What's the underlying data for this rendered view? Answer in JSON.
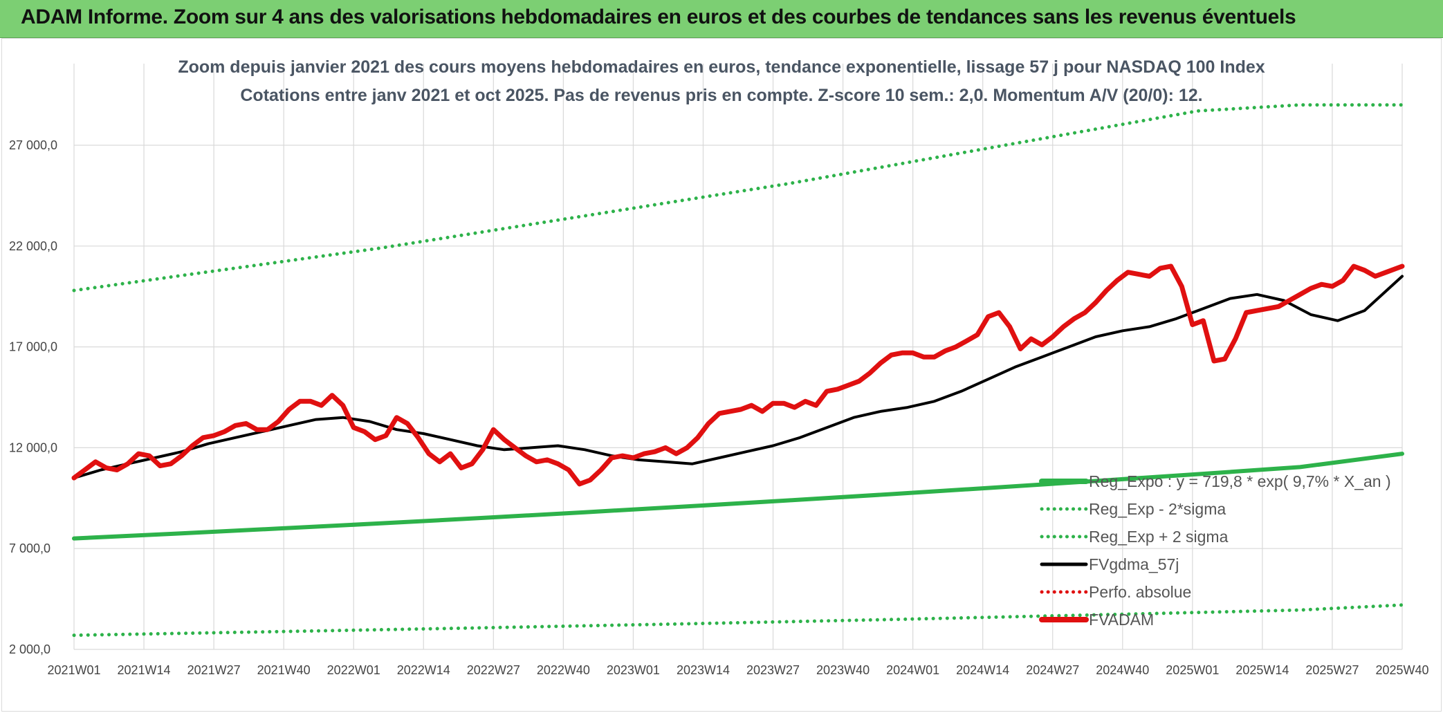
{
  "header": {
    "title": "ADAM Informe. Zoom sur 4 ans des valorisations hebdomadaires en euros et des courbes de tendances sans les revenus éventuels"
  },
  "colors": {
    "banner": "#7ccf73",
    "grid": "#d9d9d9",
    "fvadam": "#e01010",
    "fvgdma": "#000000",
    "reg_exp": "#2db24a",
    "perfo": "#e01010"
  },
  "chart_data": {
    "type": "line",
    "title": "Zoom depuis janvier 2021 des cours moyens hebdomadaires en euros, tendance exponentielle, lissage 57 j pour NASDAQ 100 Index",
    "subtitle": "Cotations entre janv 2021 et oct 2025. Pas de revenus pris en compte. Z-score 10 sem.: 2,0. Momentum A/V (20/0): 12.",
    "xlabel": "",
    "ylabel": "",
    "ylim": [
      2000,
      29000
    ],
    "y_ticks": [
      "2 000,0",
      "7 000,0",
      "12 000,0",
      "17 000,0",
      "22 000,0",
      "27 000,0"
    ],
    "y_tick_values": [
      2000,
      7000,
      12000,
      17000,
      22000,
      27000
    ],
    "x_ticks": [
      "2021W01",
      "2021W14",
      "2021W27",
      "2021W40",
      "2022W01",
      "2022W14",
      "2022W27",
      "2022W40",
      "2023W01",
      "2023W14",
      "2023W27",
      "2023W40",
      "2024W01",
      "2024W14",
      "2024W27",
      "2024W40",
      "2025W01",
      "2025W14",
      "2025W27",
      "2025W40"
    ],
    "grid": true,
    "legend_placement": "right",
    "legend": [
      {
        "label": "Reg_Expo : y = 719,8 * exp( 9,7% *  X_an )",
        "style": "solid-thick",
        "color": "#2db24a"
      },
      {
        "label": "Reg_Exp - 2*sigma",
        "style": "dotted",
        "color": "#2db24a"
      },
      {
        "label": "Reg_Exp + 2 sigma",
        "style": "dotted",
        "color": "#2db24a"
      },
      {
        "label": "FVgdma_57j",
        "style": "solid",
        "color": "#000000"
      },
      {
        "label": "Perfo. absolue",
        "style": "dotted",
        "color": "#e01010"
      },
      {
        "label": "FVADAM",
        "style": "solid-thick",
        "color": "#e01010"
      }
    ],
    "series": [
      {
        "name": "Reg_Expo : y = 719,8 * exp( 9,7% *  X_an )",
        "x": [
          0,
          19,
          38,
          57,
          76,
          95,
          114,
          133,
          152,
          171,
          190,
          209,
          228,
          247
        ],
        "values": [
          7500,
          7740,
          7990,
          8250,
          8520,
          8800,
          9090,
          9390,
          9700,
          10020,
          10350,
          10690,
          11040,
          11700
        ]
      },
      {
        "name": "Reg_Exp - 2*sigma",
        "x": [
          0,
          38,
          76,
          114,
          152,
          190,
          228,
          247
        ],
        "values": [
          2700,
          2880,
          3070,
          3270,
          3480,
          3710,
          3950,
          4200
        ]
      },
      {
        "name": "Reg_Exp + 2 sigma",
        "x": [
          0,
          19,
          38,
          57,
          76,
          95,
          114,
          133,
          152,
          171,
          190,
          209,
          228,
          247
        ],
        "values": [
          19800,
          20500,
          21200,
          21900,
          22700,
          23500,
          24300,
          25100,
          26000,
          26900,
          27800,
          28700,
          29000,
          29000
        ]
      },
      {
        "name": "FVgdma_57j",
        "x": [
          0,
          5,
          10,
          15,
          20,
          25,
          30,
          35,
          40,
          45,
          50,
          55,
          60,
          65,
          70,
          75,
          80,
          85,
          90,
          95,
          100,
          105,
          110,
          115,
          120,
          125,
          130,
          135,
          140,
          145,
          150,
          155,
          160,
          165,
          170,
          175,
          180,
          185,
          190,
          195,
          200,
          205,
          210,
          215,
          220,
          225,
          230,
          235,
          240,
          247
        ],
        "values": [
          10500,
          10900,
          11200,
          11500,
          11800,
          12200,
          12500,
          12800,
          13100,
          13400,
          13500,
          13300,
          12900,
          12700,
          12400,
          12100,
          11900,
          12000,
          12100,
          11900,
          11600,
          11400,
          11300,
          11200,
          11500,
          11800,
          12100,
          12500,
          13000,
          13500,
          13800,
          14000,
          14300,
          14800,
          15400,
          16000,
          16500,
          17000,
          17500,
          17800,
          18000,
          18400,
          18900,
          19400,
          19600,
          19300,
          18600,
          18300,
          18800,
          20500
        ]
      },
      {
        "name": "FVADAM",
        "x": [
          0,
          2,
          4,
          6,
          8,
          10,
          12,
          14,
          16,
          18,
          20,
          22,
          24,
          26,
          28,
          30,
          32,
          34,
          36,
          38,
          40,
          42,
          44,
          46,
          48,
          50,
          52,
          54,
          56,
          58,
          60,
          62,
          64,
          66,
          68,
          70,
          72,
          74,
          76,
          78,
          80,
          82,
          84,
          86,
          88,
          90,
          92,
          94,
          96,
          98,
          100,
          102,
          104,
          106,
          108,
          110,
          112,
          114,
          116,
          118,
          120,
          122,
          124,
          126,
          128,
          130,
          132,
          134,
          136,
          138,
          140,
          142,
          144,
          146,
          148,
          150,
          152,
          154,
          156,
          158,
          160,
          162,
          164,
          166,
          168,
          170,
          172,
          174,
          176,
          178,
          180,
          182,
          184,
          186,
          188,
          190,
          192,
          194,
          196,
          198,
          200,
          202,
          204,
          206,
          208,
          210,
          212,
          214,
          216,
          218,
          220,
          222,
          224,
          226,
          228,
          230,
          232,
          234,
          236,
          238,
          240,
          242,
          244,
          247
        ],
        "values": [
          10500,
          10900,
          11300,
          11000,
          10900,
          11200,
          11700,
          11600,
          11100,
          11200,
          11600,
          12100,
          12500,
          12600,
          12800,
          13100,
          13200,
          12900,
          12900,
          13300,
          13900,
          14300,
          14300,
          14100,
          14600,
          14100,
          13000,
          12800,
          12400,
          12600,
          13500,
          13200,
          12500,
          11700,
          11300,
          11700,
          11000,
          11200,
          11900,
          12900,
          12400,
          12000,
          11600,
          11300,
          11400,
          11200,
          10900,
          10200,
          10400,
          10900,
          11500,
          11600,
          11500,
          11700,
          11800,
          12000,
          11700,
          12000,
          12500,
          13200,
          13700,
          13800,
          13900,
          14100,
          13800,
          14200,
          14200,
          14000,
          14300,
          14100,
          14800,
          14900,
          15100,
          15300,
          15700,
          16200,
          16600,
          16700,
          16700,
          16500,
          16500,
          16800,
          17000,
          17300,
          17600,
          18500,
          18700,
          18000,
          16900,
          17400,
          17100,
          17500,
          18000,
          18400,
          18700,
          19200,
          19800,
          20300,
          20700,
          20600,
          20500,
          20900,
          21000,
          20000,
          18100,
          18300,
          16300,
          16400,
          17400,
          18700,
          18800,
          18900,
          19000,
          19300,
          19600,
          19900,
          20100,
          20000,
          20300,
          21000,
          20800,
          20500,
          20700,
          21000
        ]
      }
    ]
  }
}
